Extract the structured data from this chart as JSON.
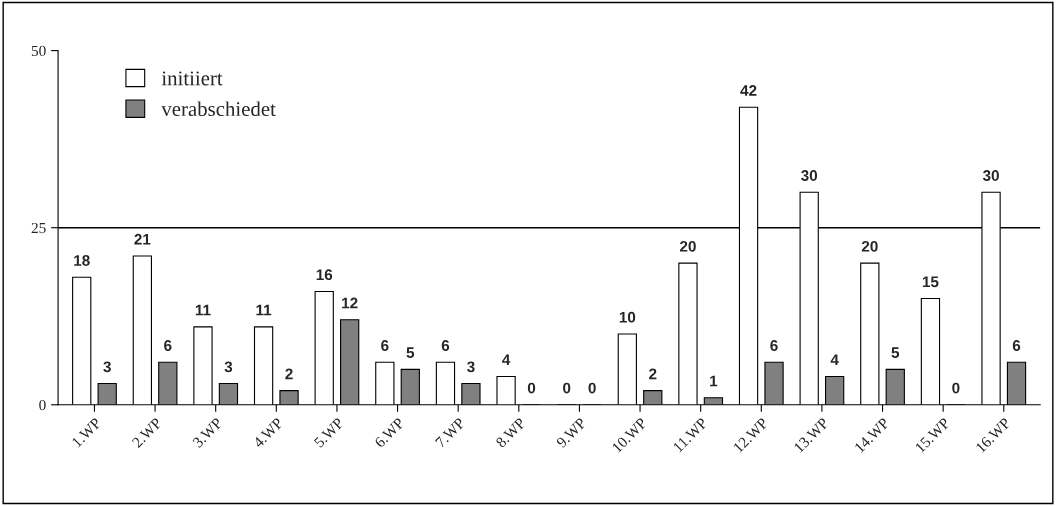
{
  "chart_data": {
    "type": "bar",
    "categories": [
      "1.WP",
      "2.WP",
      "3.WP",
      "4.WP",
      "5.WP",
      "6.WP",
      "7.WP",
      "8.WP",
      "9.WP",
      "10.WP",
      "11.WP",
      "12.WP",
      "13.WP",
      "14.WP",
      "15.WP",
      "16.WP"
    ],
    "series": [
      {
        "name": "initiiert",
        "color": "#ffffff",
        "values": [
          18,
          21,
          11,
          11,
          16,
          6,
          6,
          4,
          0,
          10,
          20,
          42,
          30,
          20,
          15,
          30
        ]
      },
      {
        "name": "verabschiedet",
        "color": "#808080",
        "values": [
          3,
          6,
          3,
          2,
          12,
          5,
          3,
          0,
          0,
          2,
          1,
          6,
          4,
          5,
          0,
          6
        ]
      }
    ],
    "ylim": [
      0,
      50
    ],
    "yticks": [
      0,
      25,
      50
    ],
    "grid": "y",
    "legend": "top left",
    "data_labels": true
  }
}
